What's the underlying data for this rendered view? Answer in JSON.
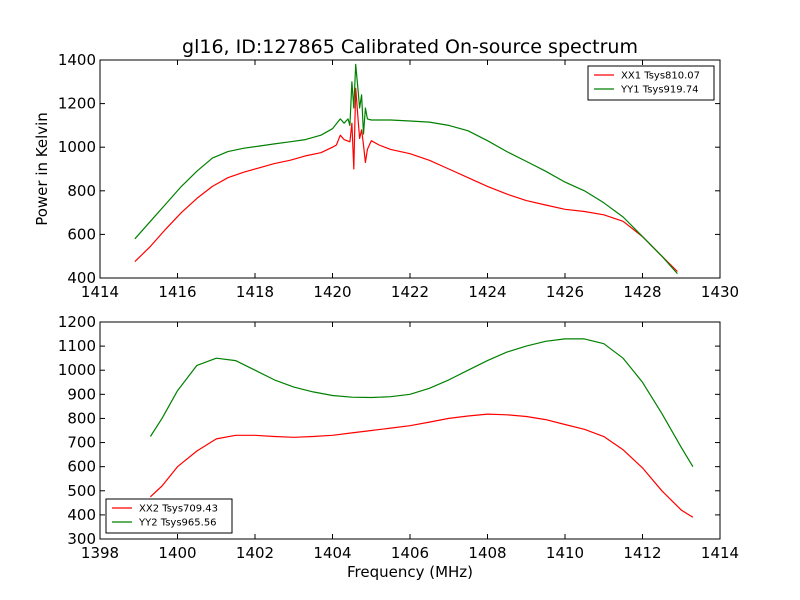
{
  "title": "gl16, ID:127865 Calibrated On-source spectrum",
  "chart_data": [
    {
      "type": "line",
      "title": "gl16, ID:127865 Calibrated On-source spectrum",
      "xlabel": "",
      "ylabel": "Power in Kelvin",
      "xlim": [
        1414,
        1430
      ],
      "ylim": [
        400,
        1400
      ],
      "xticks": [
        "1414",
        "1416",
        "1418",
        "1420",
        "1422",
        "1424",
        "1426",
        "1428",
        "1430"
      ],
      "yticks": [
        "400",
        "600",
        "800",
        "1000",
        "1200",
        "1400"
      ],
      "grid": false,
      "legend_position": "top-right",
      "series": [
        {
          "name": "XX1 Tsys810.07",
          "color": "#ff0000",
          "points": [
            [
              1414.9,
              475
            ],
            [
              1415.3,
              545
            ],
            [
              1415.7,
              625
            ],
            [
              1416.1,
              700
            ],
            [
              1416.5,
              765
            ],
            [
              1416.9,
              820
            ],
            [
              1417.3,
              860
            ],
            [
              1417.7,
              885
            ],
            [
              1418.1,
              905
            ],
            [
              1418.5,
              925
            ],
            [
              1418.9,
              940
            ],
            [
              1419.3,
              960
            ],
            [
              1419.7,
              975
            ],
            [
              1420.0,
              1000
            ],
            [
              1420.1,
              1010
            ],
            [
              1420.2,
              1055
            ],
            [
              1420.3,
              1035
            ],
            [
              1420.45,
              1025
            ],
            [
              1420.5,
              1110
            ],
            [
              1420.55,
              900
            ],
            [
              1420.6,
              1270
            ],
            [
              1420.65,
              1150
            ],
            [
              1420.7,
              1040
            ],
            [
              1420.75,
              1080
            ],
            [
              1420.8,
              1010
            ],
            [
              1420.85,
              930
            ],
            [
              1420.9,
              990
            ],
            [
              1421.0,
              1030
            ],
            [
              1421.2,
              1010
            ],
            [
              1421.5,
              990
            ],
            [
              1422.0,
              970
            ],
            [
              1422.5,
              940
            ],
            [
              1423.0,
              900
            ],
            [
              1423.5,
              860
            ],
            [
              1424.0,
              820
            ],
            [
              1424.5,
              785
            ],
            [
              1425.0,
              755
            ],
            [
              1425.5,
              735
            ],
            [
              1426.0,
              715
            ],
            [
              1426.5,
              705
            ],
            [
              1427.0,
              690
            ],
            [
              1427.5,
              660
            ],
            [
              1428.0,
              590
            ],
            [
              1428.5,
              500
            ],
            [
              1428.9,
              430
            ]
          ]
        },
        {
          "name": "YY1 Tsys919.74",
          "color": "#008000",
          "points": [
            [
              1414.9,
              580
            ],
            [
              1415.3,
              660
            ],
            [
              1415.7,
              740
            ],
            [
              1416.1,
              820
            ],
            [
              1416.5,
              890
            ],
            [
              1416.9,
              950
            ],
            [
              1417.3,
              980
            ],
            [
              1417.7,
              995
            ],
            [
              1418.1,
              1005
            ],
            [
              1418.5,
              1015
            ],
            [
              1418.9,
              1025
            ],
            [
              1419.3,
              1035
            ],
            [
              1419.7,
              1055
            ],
            [
              1420.0,
              1085
            ],
            [
              1420.2,
              1130
            ],
            [
              1420.3,
              1110
            ],
            [
              1420.4,
              1130
            ],
            [
              1420.45,
              1100
            ],
            [
              1420.5,
              1300
            ],
            [
              1420.55,
              1180
            ],
            [
              1420.6,
              1380
            ],
            [
              1420.65,
              1280
            ],
            [
              1420.7,
              1180
            ],
            [
              1420.75,
              1240
            ],
            [
              1420.8,
              1060
            ],
            [
              1420.85,
              1180
            ],
            [
              1420.9,
              1130
            ],
            [
              1421.0,
              1125
            ],
            [
              1421.5,
              1125
            ],
            [
              1422.0,
              1120
            ],
            [
              1422.5,
              1115
            ],
            [
              1423.0,
              1100
            ],
            [
              1423.5,
              1075
            ],
            [
              1424.0,
              1030
            ],
            [
              1424.5,
              980
            ],
            [
              1425.0,
              935
            ],
            [
              1425.5,
              890
            ],
            [
              1426.0,
              840
            ],
            [
              1426.5,
              800
            ],
            [
              1427.0,
              745
            ],
            [
              1427.5,
              680
            ],
            [
              1428.0,
              590
            ],
            [
              1428.5,
              500
            ],
            [
              1428.9,
              420
            ]
          ]
        }
      ]
    },
    {
      "type": "line",
      "title": "",
      "xlabel": "Frequency (MHz)",
      "ylabel": "",
      "xlim": [
        1398,
        1414
      ],
      "ylim": [
        300,
        1200
      ],
      "xticks": [
        "1398",
        "1400",
        "1402",
        "1404",
        "1406",
        "1408",
        "1410",
        "1412",
        "1414"
      ],
      "yticks": [
        "300",
        "400",
        "500",
        "600",
        "700",
        "800",
        "900",
        "1000",
        "1100",
        "1200"
      ],
      "grid": false,
      "legend_position": "bottom-left",
      "series": [
        {
          "name": "XX2 Tsys709.43",
          "color": "#ff0000",
          "points": [
            [
              1399.3,
              475
            ],
            [
              1399.6,
              520
            ],
            [
              1400.0,
              600
            ],
            [
              1400.5,
              665
            ],
            [
              1401.0,
              715
            ],
            [
              1401.5,
              730
            ],
            [
              1402.0,
              730
            ],
            [
              1402.5,
              725
            ],
            [
              1403.0,
              722
            ],
            [
              1403.5,
              725
            ],
            [
              1404.0,
              730
            ],
            [
              1404.5,
              740
            ],
            [
              1405.0,
              750
            ],
            [
              1405.5,
              760
            ],
            [
              1406.0,
              770
            ],
            [
              1406.5,
              785
            ],
            [
              1407.0,
              800
            ],
            [
              1407.5,
              810
            ],
            [
              1408.0,
              818
            ],
            [
              1408.5,
              815
            ],
            [
              1409.0,
              808
            ],
            [
              1409.5,
              795
            ],
            [
              1410.0,
              775
            ],
            [
              1410.5,
              755
            ],
            [
              1411.0,
              725
            ],
            [
              1411.5,
              670
            ],
            [
              1412.0,
              595
            ],
            [
              1412.5,
              500
            ],
            [
              1413.0,
              420
            ],
            [
              1413.3,
              390
            ]
          ]
        },
        {
          "name": "YY2 Tsys965.56",
          "color": "#008000",
          "points": [
            [
              1399.3,
              725
            ],
            [
              1399.6,
              800
            ],
            [
              1400.0,
              915
            ],
            [
              1400.5,
              1020
            ],
            [
              1401.0,
              1050
            ],
            [
              1401.5,
              1040
            ],
            [
              1402.0,
              1000
            ],
            [
              1402.5,
              960
            ],
            [
              1403.0,
              930
            ],
            [
              1403.5,
              910
            ],
            [
              1404.0,
              895
            ],
            [
              1404.5,
              888
            ],
            [
              1405.0,
              887
            ],
            [
              1405.5,
              890
            ],
            [
              1406.0,
              900
            ],
            [
              1406.5,
              925
            ],
            [
              1407.0,
              960
            ],
            [
              1407.5,
              1000
            ],
            [
              1408.0,
              1040
            ],
            [
              1408.5,
              1075
            ],
            [
              1409.0,
              1100
            ],
            [
              1409.5,
              1120
            ],
            [
              1410.0,
              1130
            ],
            [
              1410.5,
              1130
            ],
            [
              1411.0,
              1110
            ],
            [
              1411.5,
              1050
            ],
            [
              1412.0,
              950
            ],
            [
              1412.5,
              820
            ],
            [
              1413.0,
              680
            ],
            [
              1413.3,
              600
            ]
          ]
        }
      ]
    }
  ]
}
